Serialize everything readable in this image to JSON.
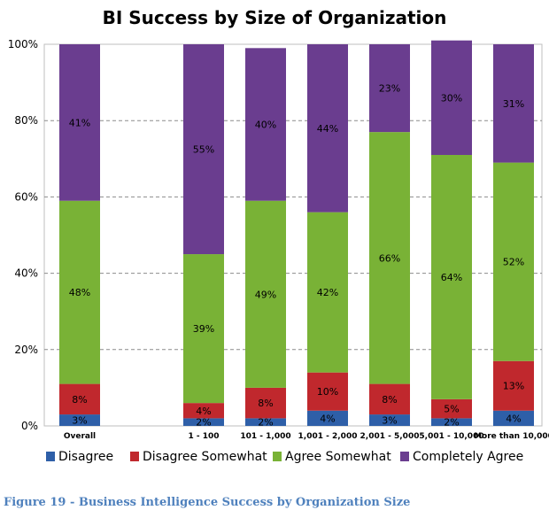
{
  "chart_data": {
    "type": "bar",
    "stacked": true,
    "title": "BI Success by Size of Organization",
    "xlabel": "",
    "ylabel": "",
    "ylim": [
      0,
      100
    ],
    "yticks": [
      "0%",
      "20%",
      "40%",
      "60%",
      "80%",
      "100%"
    ],
    "grid": true,
    "legend_position": "bottom",
    "categories": [
      "Overall",
      "1 - 100",
      "101 - 1,000",
      "1,001 - 2,000",
      "2,001 - 5,000",
      "5,001 - 10,000",
      "More than 10,000"
    ],
    "series": [
      {
        "name": "Disagree",
        "color": "#2e5fa8",
        "values": [
          3,
          2,
          2,
          4,
          3,
          2,
          4
        ]
      },
      {
        "name": "Disagree Somewhat",
        "color": "#c0282d",
        "values": [
          8,
          4,
          8,
          10,
          8,
          5,
          13
        ]
      },
      {
        "name": "Agree Somewhat",
        "color": "#79b236",
        "values": [
          48,
          39,
          49,
          42,
          66,
          64,
          52
        ]
      },
      {
        "name": "Completely Agree",
        "color": "#6a3d8f",
        "values": [
          41,
          55,
          40,
          44,
          23,
          30,
          31
        ]
      }
    ]
  },
  "caption": "Figure 19 - Business Intelligence Success by Organization Size"
}
